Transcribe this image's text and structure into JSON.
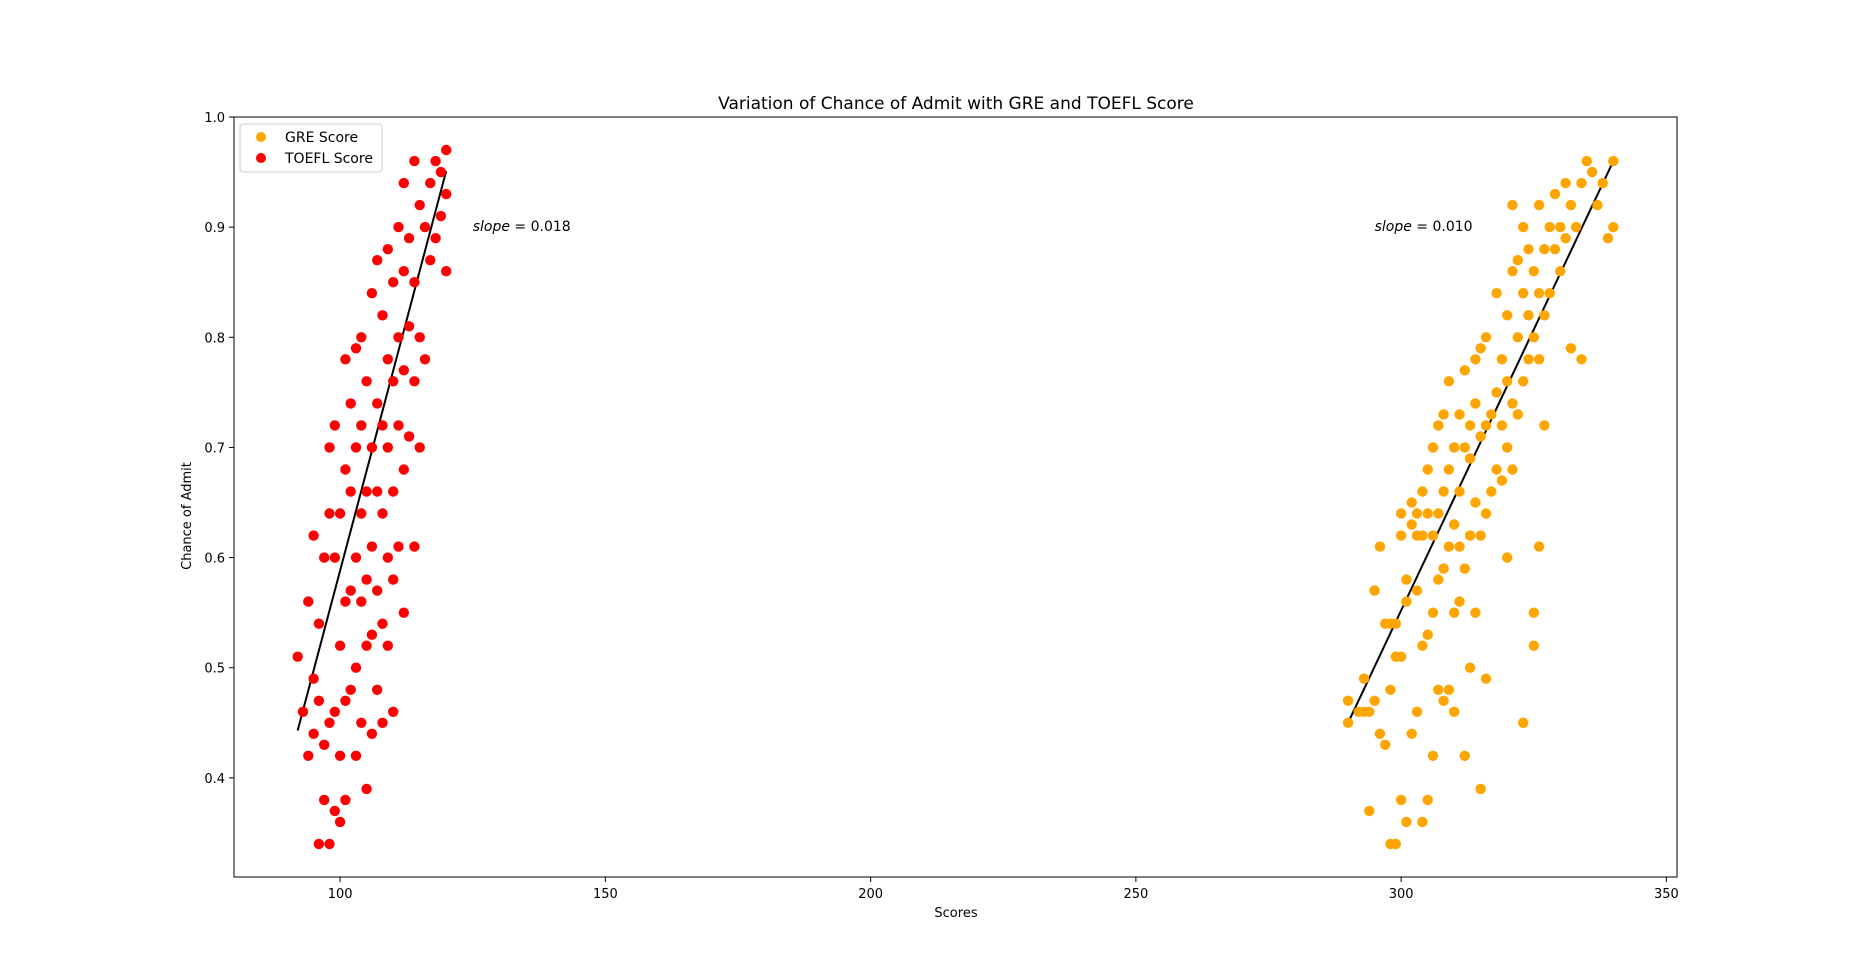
{
  "chart_data": {
    "type": "scatter",
    "title": "Variation of Chance of Admit with GRE and TOEFL Score",
    "xlabel": "Scores",
    "ylabel": "Chance of Admit",
    "xlim": [
      80,
      352
    ],
    "ylim": [
      0.31,
      1.0
    ],
    "xticks": [
      100,
      150,
      200,
      250,
      300,
      350
    ],
    "yticks": [
      0.4,
      0.5,
      0.6,
      0.7,
      0.8,
      0.9,
      1.0
    ],
    "legend": {
      "position": "top-left",
      "entries": [
        "GRE Score",
        "TOEFL Score"
      ]
    },
    "series": [
      {
        "name": "GRE Score",
        "color": "#FFA500",
        "points": [
          [
            290,
            0.45
          ],
          [
            290,
            0.47
          ],
          [
            292,
            0.46
          ],
          [
            293,
            0.49
          ],
          [
            293,
            0.46
          ],
          [
            294,
            0.46
          ],
          [
            294,
            0.37
          ],
          [
            295,
            0.47
          ],
          [
            295,
            0.57
          ],
          [
            296,
            0.44
          ],
          [
            296,
            0.61
          ],
          [
            297,
            0.43
          ],
          [
            297,
            0.54
          ],
          [
            298,
            0.34
          ],
          [
            298,
            0.54
          ],
          [
            298,
            0.48
          ],
          [
            299,
            0.34
          ],
          [
            299,
            0.51
          ],
          [
            299,
            0.54
          ],
          [
            300,
            0.38
          ],
          [
            300,
            0.51
          ],
          [
            300,
            0.62
          ],
          [
            300,
            0.64
          ],
          [
            301,
            0.36
          ],
          [
            301,
            0.56
          ],
          [
            301,
            0.58
          ],
          [
            302,
            0.44
          ],
          [
            302,
            0.63
          ],
          [
            302,
            0.65
          ],
          [
            303,
            0.46
          ],
          [
            303,
            0.57
          ],
          [
            303,
            0.62
          ],
          [
            303,
            0.64
          ],
          [
            304,
            0.36
          ],
          [
            304,
            0.52
          ],
          [
            304,
            0.62
          ],
          [
            304,
            0.66
          ],
          [
            305,
            0.38
          ],
          [
            305,
            0.53
          ],
          [
            305,
            0.64
          ],
          [
            305,
            0.68
          ],
          [
            306,
            0.42
          ],
          [
            306,
            0.55
          ],
          [
            306,
            0.62
          ],
          [
            306,
            0.7
          ],
          [
            307,
            0.48
          ],
          [
            307,
            0.58
          ],
          [
            307,
            0.64
          ],
          [
            307,
            0.72
          ],
          [
            308,
            0.47
          ],
          [
            308,
            0.59
          ],
          [
            308,
            0.66
          ],
          [
            308,
            0.73
          ],
          [
            309,
            0.48
          ],
          [
            309,
            0.61
          ],
          [
            309,
            0.68
          ],
          [
            309,
            0.76
          ],
          [
            310,
            0.46
          ],
          [
            310,
            0.55
          ],
          [
            310,
            0.63
          ],
          [
            310,
            0.7
          ],
          [
            311,
            0.56
          ],
          [
            311,
            0.61
          ],
          [
            311,
            0.66
          ],
          [
            311,
            0.73
          ],
          [
            312,
            0.42
          ],
          [
            312,
            0.59
          ],
          [
            312,
            0.7
          ],
          [
            312,
            0.77
          ],
          [
            313,
            0.5
          ],
          [
            313,
            0.62
          ],
          [
            313,
            0.69
          ],
          [
            313,
            0.72
          ],
          [
            314,
            0.55
          ],
          [
            314,
            0.65
          ],
          [
            314,
            0.74
          ],
          [
            314,
            0.78
          ],
          [
            315,
            0.39
          ],
          [
            315,
            0.62
          ],
          [
            315,
            0.71
          ],
          [
            315,
            0.79
          ],
          [
            316,
            0.49
          ],
          [
            316,
            0.64
          ],
          [
            316,
            0.72
          ],
          [
            316,
            0.8
          ],
          [
            317,
            0.66
          ],
          [
            317,
            0.73
          ],
          [
            318,
            0.68
          ],
          [
            318,
            0.75
          ],
          [
            318,
            0.84
          ],
          [
            319,
            0.67
          ],
          [
            319,
            0.72
          ],
          [
            319,
            0.78
          ],
          [
            320,
            0.6
          ],
          [
            320,
            0.7
          ],
          [
            320,
            0.76
          ],
          [
            320,
            0.82
          ],
          [
            321,
            0.68
          ],
          [
            321,
            0.74
          ],
          [
            321,
            0.86
          ],
          [
            321,
            0.92
          ],
          [
            322,
            0.73
          ],
          [
            322,
            0.8
          ],
          [
            322,
            0.87
          ],
          [
            323,
            0.45
          ],
          [
            323,
            0.76
          ],
          [
            323,
            0.84
          ],
          [
            323,
            0.9
          ],
          [
            324,
            0.78
          ],
          [
            324,
            0.82
          ],
          [
            324,
            0.88
          ],
          [
            325,
            0.52
          ],
          [
            325,
            0.55
          ],
          [
            325,
            0.8
          ],
          [
            325,
            0.86
          ],
          [
            326,
            0.61
          ],
          [
            326,
            0.78
          ],
          [
            326,
            0.84
          ],
          [
            326,
            0.92
          ],
          [
            327,
            0.72
          ],
          [
            327,
            0.82
          ],
          [
            327,
            0.88
          ],
          [
            328,
            0.84
          ],
          [
            328,
            0.9
          ],
          [
            329,
            0.88
          ],
          [
            329,
            0.93
          ],
          [
            330,
            0.86
          ],
          [
            330,
            0.9
          ],
          [
            331,
            0.89
          ],
          [
            331,
            0.94
          ],
          [
            332,
            0.79
          ],
          [
            332,
            0.92
          ],
          [
            333,
            0.9
          ],
          [
            334,
            0.78
          ],
          [
            334,
            0.94
          ],
          [
            335,
            0.96
          ],
          [
            336,
            0.95
          ],
          [
            337,
            0.92
          ],
          [
            338,
            0.94
          ],
          [
            339,
            0.89
          ],
          [
            340,
            0.9
          ],
          [
            340,
            0.96
          ]
        ]
      },
      {
        "name": "TOEFL Score",
        "color": "#FF0000",
        "points": [
          [
            92,
            0.51
          ],
          [
            93,
            0.46
          ],
          [
            94,
            0.42
          ],
          [
            94,
            0.56
          ],
          [
            95,
            0.62
          ],
          [
            95,
            0.44
          ],
          [
            95,
            0.49
          ],
          [
            96,
            0.34
          ],
          [
            96,
            0.47
          ],
          [
            96,
            0.54
          ],
          [
            97,
            0.38
          ],
          [
            97,
            0.43
          ],
          [
            97,
            0.6
          ],
          [
            98,
            0.34
          ],
          [
            98,
            0.45
          ],
          [
            98,
            0.64
          ],
          [
            98,
            0.7
          ],
          [
            99,
            0.37
          ],
          [
            99,
            0.46
          ],
          [
            99,
            0.6
          ],
          [
            99,
            0.72
          ],
          [
            100,
            0.36
          ],
          [
            100,
            0.42
          ],
          [
            100,
            0.52
          ],
          [
            100,
            0.64
          ],
          [
            101,
            0.38
          ],
          [
            101,
            0.47
          ],
          [
            101,
            0.56
          ],
          [
            101,
            0.68
          ],
          [
            101,
            0.78
          ],
          [
            102,
            0.48
          ],
          [
            102,
            0.57
          ],
          [
            102,
            0.66
          ],
          [
            102,
            0.74
          ],
          [
            103,
            0.42
          ],
          [
            103,
            0.5
          ],
          [
            103,
            0.6
          ],
          [
            103,
            0.7
          ],
          [
            103,
            0.79
          ],
          [
            104,
            0.45
          ],
          [
            104,
            0.56
          ],
          [
            104,
            0.64
          ],
          [
            104,
            0.72
          ],
          [
            104,
            0.8
          ],
          [
            105,
            0.39
          ],
          [
            105,
            0.52
          ],
          [
            105,
            0.58
          ],
          [
            105,
            0.66
          ],
          [
            105,
            0.76
          ],
          [
            106,
            0.44
          ],
          [
            106,
            0.53
          ],
          [
            106,
            0.61
          ],
          [
            106,
            0.7
          ],
          [
            106,
            0.84
          ],
          [
            107,
            0.48
          ],
          [
            107,
            0.57
          ],
          [
            107,
            0.66
          ],
          [
            107,
            0.74
          ],
          [
            107,
            0.87
          ],
          [
            108,
            0.45
          ],
          [
            108,
            0.54
          ],
          [
            108,
            0.64
          ],
          [
            108,
            0.72
          ],
          [
            108,
            0.82
          ],
          [
            109,
            0.52
          ],
          [
            109,
            0.6
          ],
          [
            109,
            0.7
          ],
          [
            109,
            0.78
          ],
          [
            109,
            0.88
          ],
          [
            110,
            0.46
          ],
          [
            110,
            0.58
          ],
          [
            110,
            0.66
          ],
          [
            110,
            0.76
          ],
          [
            110,
            0.85
          ],
          [
            111,
            0.61
          ],
          [
            111,
            0.72
          ],
          [
            111,
            0.8
          ],
          [
            111,
            0.9
          ],
          [
            112,
            0.55
          ],
          [
            112,
            0.68
          ],
          [
            112,
            0.77
          ],
          [
            112,
            0.86
          ],
          [
            112,
            0.94
          ],
          [
            113,
            0.71
          ],
          [
            113,
            0.81
          ],
          [
            113,
            0.89
          ],
          [
            114,
            0.61
          ],
          [
            114,
            0.76
          ],
          [
            114,
            0.85
          ],
          [
            114,
            0.96
          ],
          [
            115,
            0.7
          ],
          [
            115,
            0.8
          ],
          [
            115,
            0.92
          ],
          [
            116,
            0.78
          ],
          [
            116,
            0.9
          ],
          [
            117,
            0.87
          ],
          [
            117,
            0.94
          ],
          [
            118,
            0.89
          ],
          [
            118,
            0.96
          ],
          [
            119,
            0.91
          ],
          [
            119,
            0.95
          ],
          [
            120,
            0.86
          ],
          [
            120,
            0.93
          ],
          [
            120,
            0.97
          ]
        ]
      }
    ],
    "fit_lines": [
      {
        "series": "TOEFL Score",
        "x": [
          92,
          120
        ],
        "y": [
          0.443,
          0.951
        ],
        "label": "$slope=0.018$",
        "label_at": [
          125,
          0.901
        ]
      },
      {
        "series": "GRE Score",
        "x": [
          290,
          340
        ],
        "y": [
          0.45,
          0.96
        ],
        "label": "$slope=0.010$",
        "label_at": [
          295,
          0.901
        ]
      }
    ]
  }
}
